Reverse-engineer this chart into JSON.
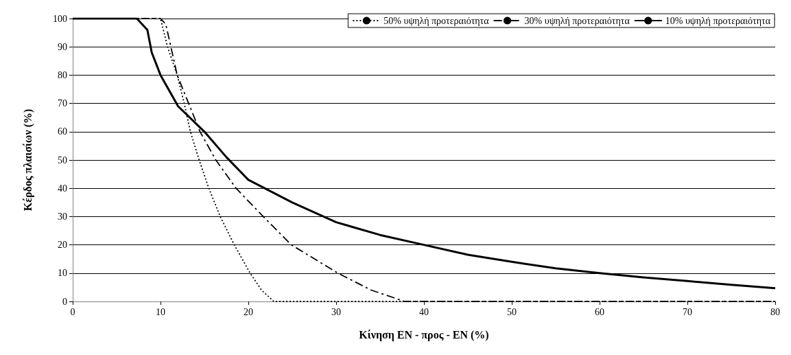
{
  "chart_data": {
    "type": "line",
    "xlabel": "Κίνηση ΕΝ - προς - ΕΝ (%)",
    "ylabel": "Κέρδος πλαισίων (%)",
    "xlim": [
      0,
      80
    ],
    "xticks": [
      0,
      10,
      20,
      30,
      40,
      50,
      60,
      70,
      80
    ],
    "ylim": [
      0,
      100
    ],
    "yticks": [
      0,
      10,
      20,
      30,
      40,
      50,
      60,
      70,
      80,
      90,
      100
    ],
    "grid": "y",
    "legend": "top right",
    "marker": "none",
    "series": [
      {
        "name": "50% υψηλή προτεραιότητα",
        "color": "#000000",
        "line_style": "dotted",
        "x": [
          0,
          10,
          10.8,
          11.9,
          12.7,
          13.4,
          14.4,
          15.5,
          16.8,
          18.4,
          20.2,
          21.5,
          22.9,
          30,
          40,
          50,
          60,
          70,
          80
        ],
        "values": [
          100,
          100,
          90,
          80,
          70,
          60,
          50,
          40,
          30,
          20,
          10,
          4,
          0,
          0,
          0,
          0,
          0,
          0,
          0
        ]
      },
      {
        "name": "30% υψηλή προτεραιότητα",
        "color": "#000000",
        "line_style": "dashed",
        "x": [
          0,
          10,
          10.6,
          11.9,
          13.2,
          14.5,
          16.3,
          18.6,
          21.7,
          24.9,
          30.2,
          34,
          37.8,
          40,
          50,
          60,
          70,
          80
        ],
        "values": [
          100,
          100,
          98,
          80,
          70,
          60,
          50,
          40,
          30,
          20,
          10,
          4,
          0,
          0,
          0,
          0,
          0,
          0
        ]
      },
      {
        "name": "10% υψηλή προτεραιότητα",
        "color": "#000000",
        "line_style": "solid",
        "x": [
          0,
          7.3,
          8.5,
          9,
          10,
          12,
          15,
          17.5,
          20,
          25,
          30,
          35,
          40,
          45,
          50,
          55,
          60,
          65,
          70,
          75,
          80
        ],
        "values": [
          100,
          100,
          96,
          88,
          80,
          69,
          60,
          51,
          43,
          35,
          28,
          23.5,
          20,
          16.5,
          14,
          11.7,
          10,
          8.5,
          7.2,
          5.9,
          4.7
        ]
      }
    ]
  }
}
